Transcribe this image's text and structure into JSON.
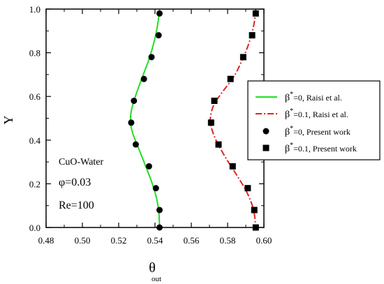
{
  "chart_data": {
    "type": "line",
    "xlabel": "θ",
    "xlabel_sub": "out",
    "ylabel": "Y",
    "xlim": [
      0.48,
      0.6
    ],
    "ylim": [
      0.0,
      1.0
    ],
    "x_ticks": [
      "0.48",
      "0.50",
      "0.52",
      "0.54",
      "0.56",
      "0.58",
      "0.60"
    ],
    "y_ticks": [
      "0.0",
      "0.2",
      "0.4",
      "0.6",
      "0.8",
      "1.0"
    ],
    "grid": false,
    "legend_placement": "right",
    "annotations": [
      "CuO-Water",
      "φ=0.03",
      "Re=100"
    ],
    "series": [
      {
        "name": "β*=0, Raisi et al.",
        "kind": "line",
        "color": "#22dd22",
        "dash": "solid",
        "points": [
          [
            0.5425,
            1.0
          ],
          [
            0.5415,
            0.93
          ],
          [
            0.5395,
            0.85
          ],
          [
            0.5367,
            0.77
          ],
          [
            0.5331,
            0.69
          ],
          [
            0.5296,
            0.61
          ],
          [
            0.5271,
            0.54
          ],
          [
            0.5265,
            0.48
          ],
          [
            0.5278,
            0.43
          ],
          [
            0.5306,
            0.37
          ],
          [
            0.5344,
            0.29
          ],
          [
            0.5381,
            0.21
          ],
          [
            0.5407,
            0.14
          ],
          [
            0.5421,
            0.07
          ],
          [
            0.5425,
            0.0
          ]
        ]
      },
      {
        "name": "β*=0.1, Raisi et al.",
        "kind": "line",
        "color": "#e32222",
        "dash": "dashdot",
        "points": [
          [
            0.5955,
            1.0
          ],
          [
            0.5945,
            0.93
          ],
          [
            0.592,
            0.85
          ],
          [
            0.5882,
            0.77
          ],
          [
            0.5834,
            0.69
          ],
          [
            0.5771,
            0.62
          ],
          [
            0.5723,
            0.56
          ],
          [
            0.5705,
            0.5
          ],
          [
            0.571,
            0.46
          ],
          [
            0.5736,
            0.4
          ],
          [
            0.5789,
            0.32
          ],
          [
            0.585,
            0.24
          ],
          [
            0.5907,
            0.16
          ],
          [
            0.5943,
            0.08
          ],
          [
            0.5955,
            0.0
          ]
        ]
      },
      {
        "name": "β*=0, Present work",
        "kind": "markers",
        "marker": "circle",
        "color": "#000000",
        "points": [
          [
            0.5425,
            0.98
          ],
          [
            0.542,
            0.88
          ],
          [
            0.5381,
            0.78
          ],
          [
            0.5339,
            0.68
          ],
          [
            0.5284,
            0.58
          ],
          [
            0.5269,
            0.48
          ],
          [
            0.5294,
            0.38
          ],
          [
            0.5367,
            0.28
          ],
          [
            0.5405,
            0.18
          ],
          [
            0.5425,
            0.08
          ],
          [
            0.5425,
            0.0
          ]
        ]
      },
      {
        "name": "β*=0.1, Present work",
        "kind": "markers",
        "marker": "square",
        "color": "#000000",
        "points": [
          [
            0.5955,
            0.98
          ],
          [
            0.5935,
            0.88
          ],
          [
            0.5886,
            0.78
          ],
          [
            0.5816,
            0.68
          ],
          [
            0.5727,
            0.58
          ],
          [
            0.5709,
            0.48
          ],
          [
            0.575,
            0.38
          ],
          [
            0.5828,
            0.28
          ],
          [
            0.5911,
            0.18
          ],
          [
            0.5947,
            0.08
          ],
          [
            0.5955,
            0.0
          ]
        ]
      }
    ],
    "legend": [
      {
        "prefix": "β",
        "sup": "*",
        "rest": "=0, Raisi et al."
      },
      {
        "prefix": "β",
        "sup": "*",
        "rest": "=0.1, Raisi et al."
      },
      {
        "prefix": "β",
        "sup": "*",
        "rest": "=0, Present work"
      },
      {
        "prefix": "β",
        "sup": "*",
        "rest": "=0.1, Present work"
      }
    ]
  }
}
